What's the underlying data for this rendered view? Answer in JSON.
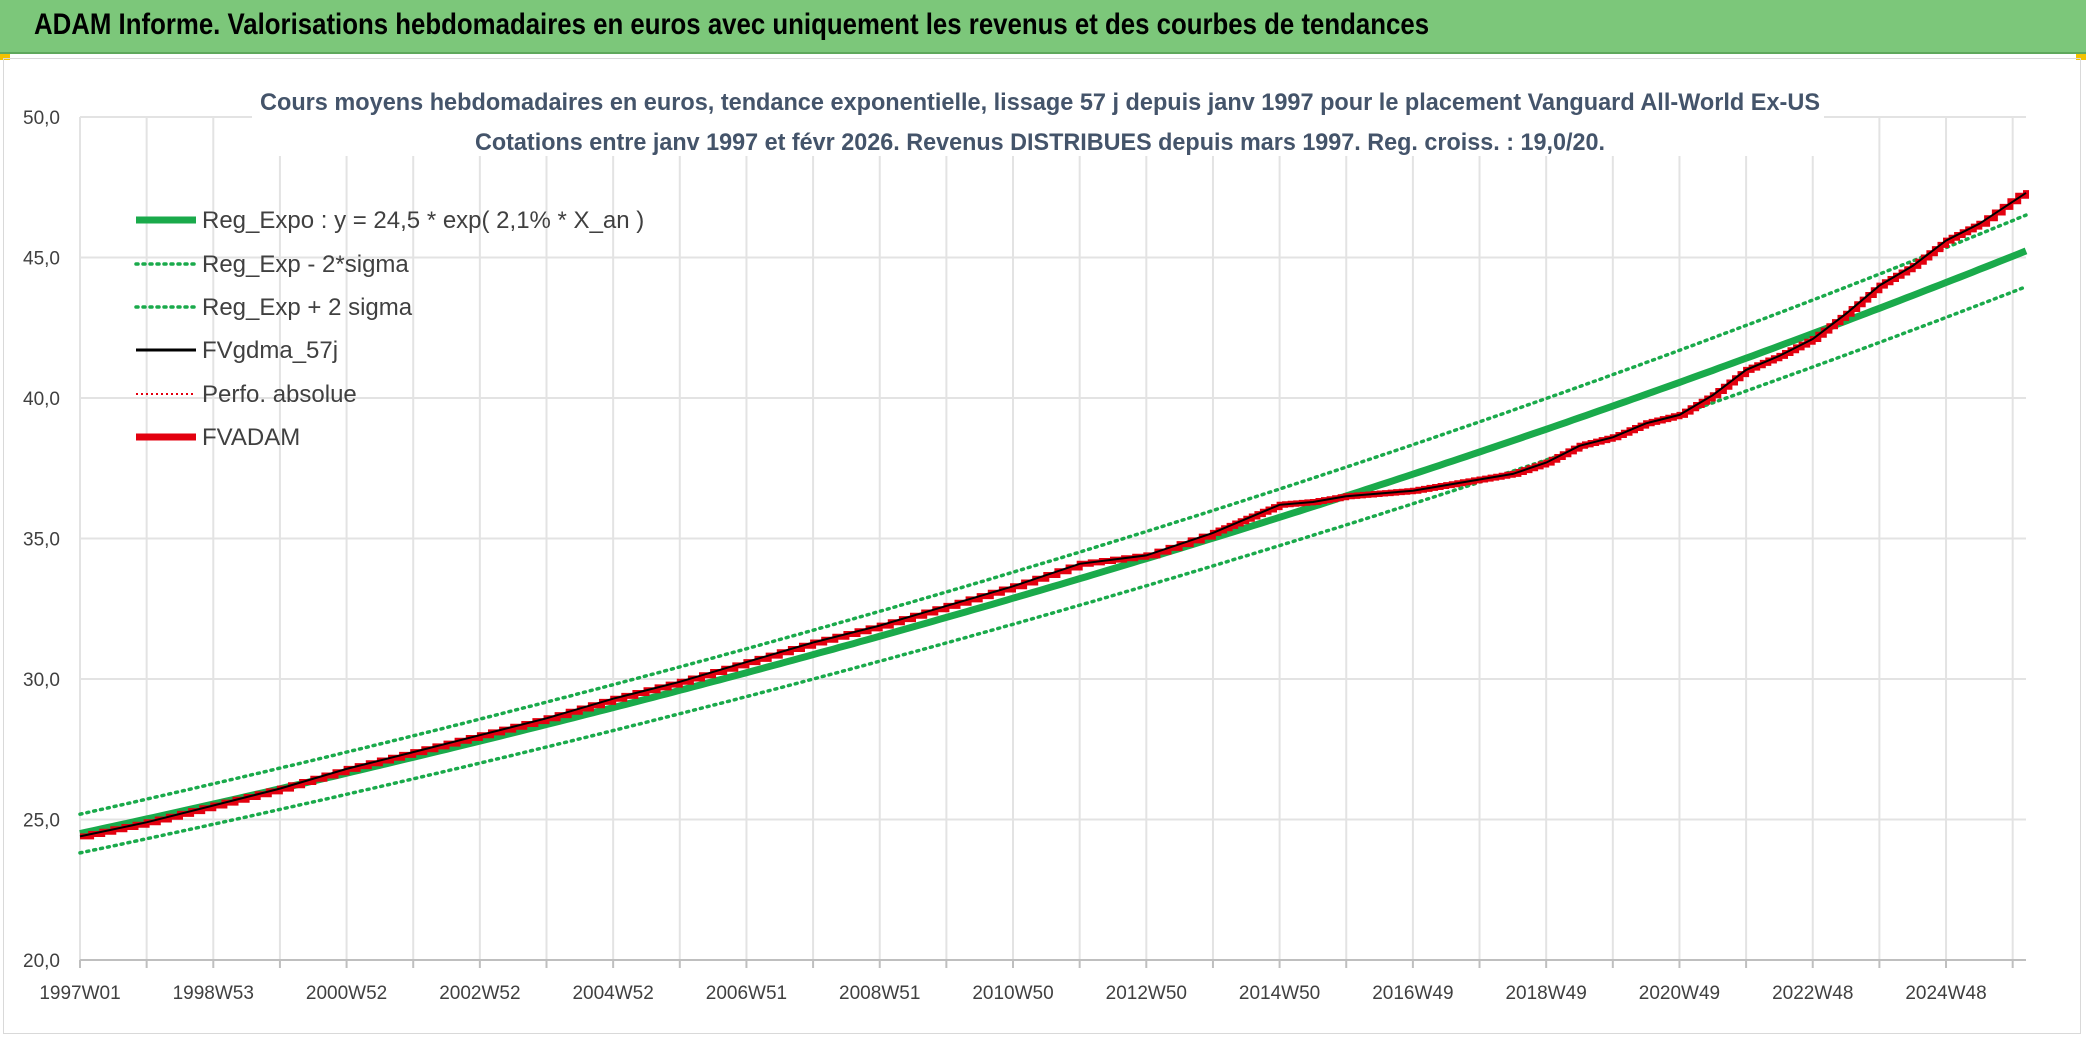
{
  "banner": {
    "title": "ADAM Informe. Valorisations hebdomadaires en euros avec uniquement les revenus et des courbes de tendances"
  },
  "colors": {
    "banner_bg": "#7cc77a",
    "trend_green": "#1aaa4b",
    "fvadam_red": "#e3000f",
    "gdma_black": "#000000",
    "perfo_red": "#e3000f",
    "grid": "#e3e3e3",
    "axis_text": "#404040",
    "title_text": "#44546a"
  },
  "chart_data": {
    "type": "line",
    "title_line1": "Cours moyens hebdomadaires en euros, tendance exponentielle, lissage 57 j depuis janv 1997 pour le placement Vanguard All-World Ex-US",
    "title_line2": "Cotations entre janv 1997 et févr 2026. Revenus DISTRIBUES depuis mars 1997. Reg. croiss. : 19,0/20.",
    "ylim": [
      20,
      50
    ],
    "y_ticks": [
      "20,0",
      "25,0",
      "30,0",
      "35,0",
      "40,0",
      "45,0",
      "50,0"
    ],
    "xlim_years": [
      1997.0,
      2026.2
    ],
    "x_tick_labels": [
      "1997W01",
      "1998W53",
      "2000W52",
      "2002W52",
      "2004W52",
      "2006W51",
      "2008W51",
      "2010W50",
      "2012W50",
      "2014W50",
      "2016W49",
      "2018W49",
      "2020W49",
      "2022W48",
      "2024W48"
    ],
    "legend_position": "top-left",
    "grid": true,
    "legend": [
      {
        "key": "reg_expo",
        "label": "Reg_Expo : y = 24,5 * exp( 2,1% *  X_an )",
        "style": "thick",
        "color": "#1aaa4b"
      },
      {
        "key": "reg_minus",
        "label": "Reg_Exp - 2*sigma",
        "style": "dotted",
        "color": "#1aaa4b"
      },
      {
        "key": "reg_plus",
        "label": "Reg_Exp + 2 sigma",
        "style": "dotted",
        "color": "#1aaa4b"
      },
      {
        "key": "gdma",
        "label": "FVgdma_57j",
        "style": "solid",
        "color": "#000000"
      },
      {
        "key": "perfo",
        "label": "Perfo. absolue",
        "style": "dotted-thin",
        "color": "#e3000f"
      },
      {
        "key": "fvadam",
        "label": "FVADAM",
        "style": "thick",
        "color": "#e3000f"
      }
    ],
    "trend": {
      "a": 24.5,
      "rate": 0.021,
      "sigma_offset": 0.69
    },
    "series": [
      {
        "name": "FVADAM",
        "x": [
          1997.0,
          1998.0,
          1999.0,
          2000.0,
          2001.0,
          2002.0,
          2003.0,
          2004.0,
          2005.0,
          2006.0,
          2007.0,
          2008.0,
          2009.0,
          2010.0,
          2011.0,
          2012.0,
          2013.0,
          2014.0,
          2014.5,
          2015.0,
          2015.5,
          2016.0,
          2016.5,
          2017.0,
          2017.5,
          2018.0,
          2018.5,
          2019.0,
          2019.5,
          2020.0,
          2020.5,
          2021.0,
          2021.5,
          2022.0,
          2022.5,
          2023.0,
          2023.5,
          2024.0,
          2024.5,
          2025.0,
          2025.5,
          2026.2
        ],
        "y": [
          24.4,
          24.9,
          25.5,
          26.1,
          26.8,
          27.4,
          28.0,
          28.6,
          29.3,
          29.9,
          30.6,
          31.3,
          31.9,
          32.6,
          33.3,
          34.1,
          34.4,
          35.2,
          35.7,
          36.2,
          36.3,
          36.5,
          36.6,
          36.7,
          36.9,
          37.1,
          37.3,
          37.7,
          38.3,
          38.6,
          39.1,
          39.4,
          40.1,
          41.0,
          41.5,
          42.1,
          43.0,
          44.0,
          44.7,
          45.6,
          46.2,
          47.4
        ]
      },
      {
        "name": "FVgdma_57j",
        "x": [
          1997.0,
          1998.0,
          1999.0,
          2000.0,
          2001.0,
          2002.0,
          2003.0,
          2004.0,
          2005.0,
          2006.0,
          2007.0,
          2008.0,
          2009.0,
          2010.0,
          2011.0,
          2012.0,
          2013.0,
          2014.0,
          2014.5,
          2015.0,
          2015.5,
          2016.0,
          2016.5,
          2017.0,
          2017.5,
          2018.0,
          2018.5,
          2019.0,
          2019.5,
          2020.0,
          2020.5,
          2021.0,
          2021.5,
          2022.0,
          2022.5,
          2023.0,
          2023.5,
          2024.0,
          2024.5,
          2025.0,
          2025.5,
          2026.2
        ],
        "y": [
          24.4,
          24.9,
          25.5,
          26.1,
          26.8,
          27.4,
          28.0,
          28.6,
          29.3,
          29.9,
          30.6,
          31.3,
          31.9,
          32.6,
          33.3,
          34.1,
          34.4,
          35.2,
          35.7,
          36.2,
          36.3,
          36.5,
          36.6,
          36.7,
          36.9,
          37.1,
          37.3,
          37.7,
          38.3,
          38.6,
          39.1,
          39.4,
          40.1,
          41.0,
          41.5,
          42.1,
          43.0,
          44.0,
          44.7,
          45.6,
          46.2,
          47.3
        ]
      }
    ]
  }
}
